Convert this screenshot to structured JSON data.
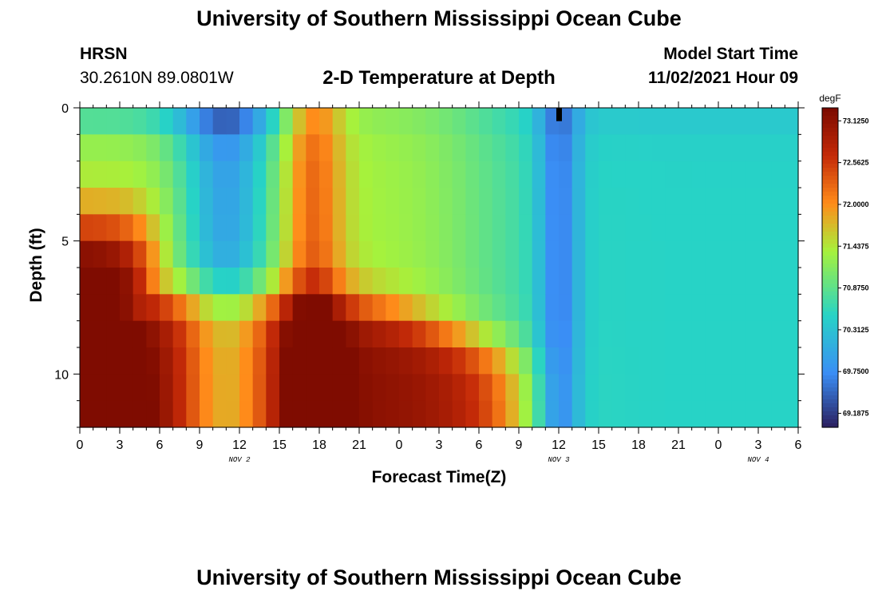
{
  "header": {
    "title": "University of Southern Mississippi Ocean Cube",
    "station": "HRSN",
    "coords": "30.2610N  89.0801W",
    "subtitle": "2-D Temperature at Depth",
    "model_label": "Model Start Time",
    "model_time": "11/02/2021 Hour 09"
  },
  "footer": {
    "title": "University of Southern Mississippi Ocean Cube"
  },
  "colors": {
    "min": "#2b1f5e",
    "blue": "#3a8ef5",
    "cyan": "#27d3c6",
    "green": "#a6f23c",
    "orange": "#ff8c1a",
    "red": "#c42a08",
    "max": "#7a0a00",
    "hot_spot": "#000000"
  },
  "chart_data": {
    "type": "heatmap",
    "title": "2-D Temperature at Depth",
    "xlabel": "Forecast Time(Z)",
    "ylabel": "Depth (ft)",
    "x_range_hours": [
      0,
      54
    ],
    "x_tick_labels": [
      "0",
      "3",
      "6",
      "9",
      "12",
      "15",
      "18",
      "21",
      "0",
      "3",
      "6",
      "9",
      "12",
      "15",
      "18",
      "21",
      "0",
      "3",
      "6"
    ],
    "date_labels": [
      {
        "label": "NOV 2",
        "hour": 12
      },
      {
        "label": "NOV 3",
        "hour": 36
      },
      {
        "label": "NOV 4",
        "hour": 51
      }
    ],
    "y_range": [
      0,
      12
    ],
    "y_ticks": [
      0,
      5,
      10
    ],
    "depth_levels_ft": [
      0.5,
      1.5,
      2.5,
      3.5,
      4.5,
      5.5,
      6.5,
      7.5,
      8.5,
      9.5,
      10.5,
      11.5
    ],
    "colorbar": {
      "unit": "degF",
      "min": 69.0,
      "max": 73.3,
      "tick_labels": [
        "73.1250",
        "72.5625",
        "72.0000",
        "71.4375",
        "70.8750",
        "70.3125",
        "69.7500",
        "69.1875"
      ]
    },
    "grid": false,
    "hot_spot": {
      "hour": 36,
      "depth": 0.3
    }
  }
}
